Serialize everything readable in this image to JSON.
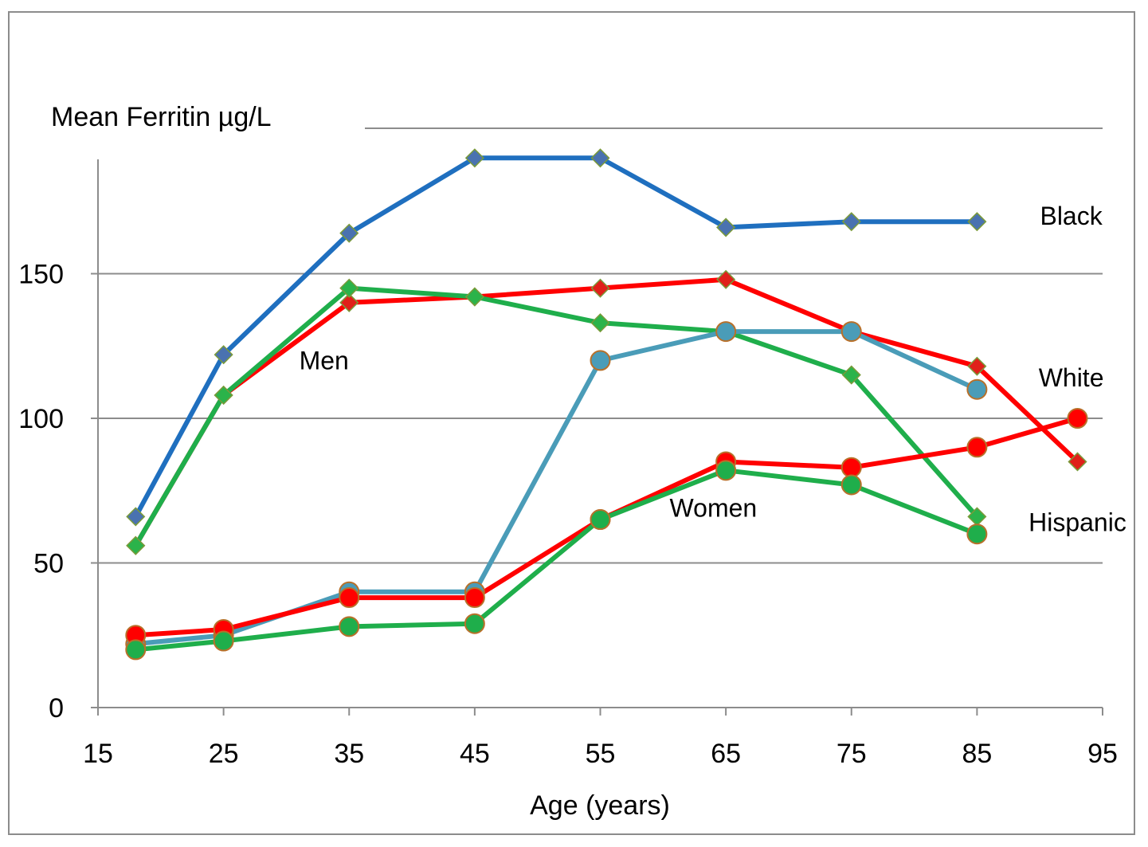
{
  "chart_data": {
    "type": "line",
    "ylabel": "Mean Ferritin µg/L",
    "xlabel": "Age (years)",
    "xlim": [
      15,
      95
    ],
    "ylim": [
      0,
      190
    ],
    "x_ticks": [
      "15",
      "25",
      "35",
      "45",
      "55",
      "65",
      "75",
      "85",
      "95"
    ],
    "y_ticks": [
      "0",
      "50",
      "100",
      "150"
    ],
    "grid": "horizontal",
    "series": [
      {
        "group": "men",
        "color": "#1f6fbf",
        "marker": "diamond",
        "marker_fill": "#4a72b0",
        "x": [
          18,
          25,
          35,
          45,
          55,
          65,
          75,
          85
        ],
        "y": [
          66,
          122,
          164,
          190,
          190,
          166,
          168,
          168
        ]
      },
      {
        "group": "men",
        "color": "#ff0000",
        "marker": "diamond",
        "marker_fill": "#e0201a",
        "x": [
          18,
          25,
          35,
          45,
          55,
          65,
          75,
          85,
          93
        ],
        "y": [
          56,
          108,
          140,
          142,
          145,
          148,
          130,
          118,
          85
        ]
      },
      {
        "group": "men",
        "color": "#1fae4b",
        "marker": "diamond",
        "marker_fill": "#2bb34a",
        "x": [
          18,
          25,
          35,
          45,
          55,
          65,
          75,
          85
        ],
        "y": [
          56,
          108,
          145,
          142,
          133,
          130,
          115,
          66
        ]
      },
      {
        "group": "women",
        "color": "#4a9cb8",
        "marker": "circle",
        "marker_fill": "#4a9cb8",
        "x": [
          18,
          25,
          35,
          45,
          55,
          65,
          75,
          85
        ],
        "y": [
          22,
          25,
          40,
          40,
          120,
          130,
          130,
          110
        ]
      },
      {
        "group": "women",
        "color": "#ff0000",
        "marker": "circle",
        "marker_fill": "#ff0000",
        "x": [
          18,
          25,
          35,
          45,
          55,
          65,
          75,
          85,
          93
        ],
        "y": [
          25,
          27,
          38,
          38,
          65,
          85,
          83,
          90,
          100
        ]
      },
      {
        "group": "women",
        "color": "#1fae4b",
        "marker": "circle",
        "marker_fill": "#1fae4b",
        "x": [
          18,
          25,
          35,
          45,
          55,
          65,
          75,
          85
        ],
        "y": [
          20,
          23,
          28,
          29,
          65,
          82,
          77,
          60
        ]
      }
    ],
    "annotations": [
      {
        "text": "Black",
        "x": 92.5,
        "y": 167
      },
      {
        "text": "Men",
        "x": 33,
        "y": 117
      },
      {
        "text": "White",
        "x": 92.5,
        "y": 111
      },
      {
        "text": "Women",
        "x": 64,
        "y": 66
      },
      {
        "text": "Hispanic",
        "x": 93,
        "y": 61
      }
    ]
  }
}
